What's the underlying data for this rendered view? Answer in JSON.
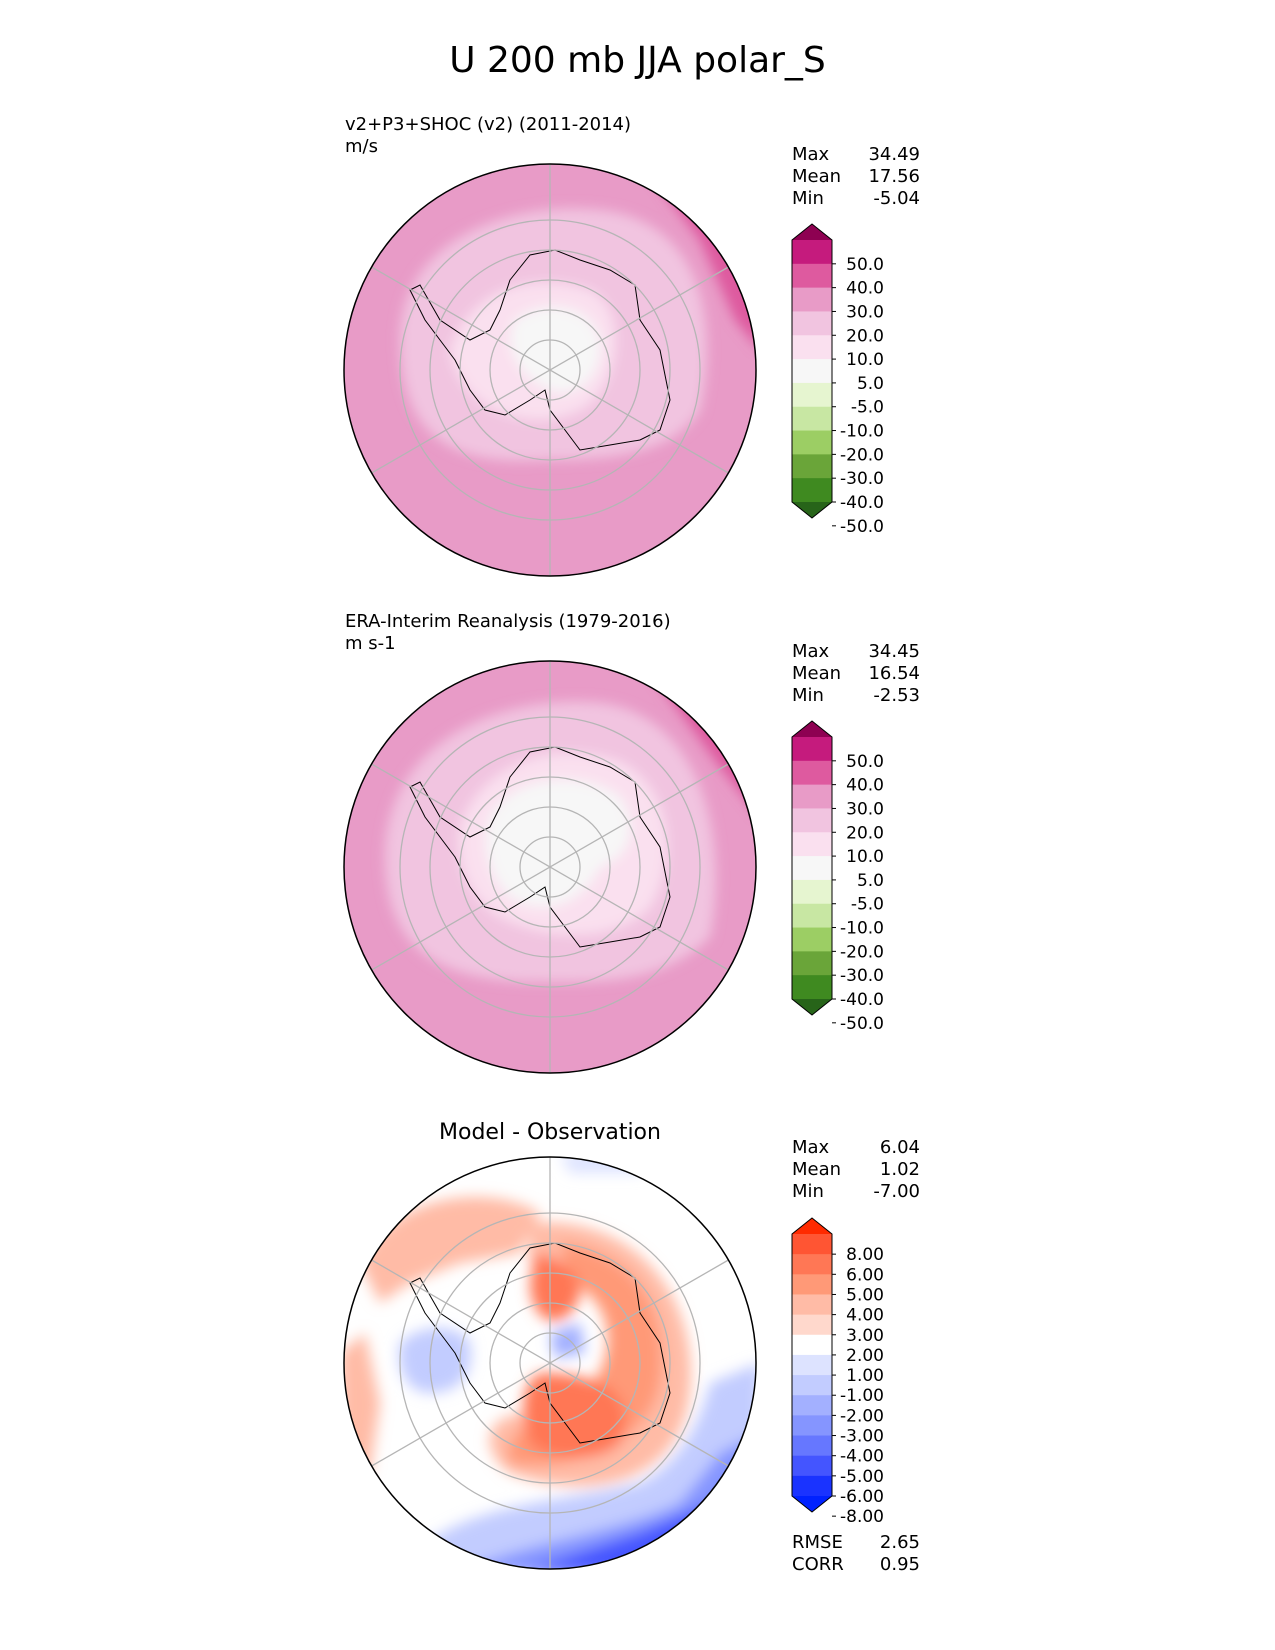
{
  "title": "U 200 mb JJA polar_S",
  "panels": [
    {
      "id": "test",
      "subtitle": "v2+P3+SHOC (v2) (2011-2014)",
      "units": "m/s",
      "stats": [
        {
          "label": "Max",
          "value": "34.49"
        },
        {
          "label": "Mean",
          "value": "17.56"
        },
        {
          "label": "Min",
          "value": "-5.04"
        }
      ],
      "colorbar": {
        "ticks": [
          "50.0",
          "40.0",
          "30.0",
          "20.0",
          "10.0",
          "5.0",
          "-5.0",
          "-10.0",
          "-20.0",
          "-30.0",
          "-40.0",
          "-50.0"
        ],
        "colors": [
          "#8e0152",
          "#c51b7d",
          "#de5a9f",
          "#e89bc7",
          "#f1c4e0",
          "#fae0ef",
          "#f7f7f7",
          "#e6f5d0",
          "#c8e7a3",
          "#9cce64",
          "#6aa539",
          "#3f8a20",
          "#276419"
        ]
      }
    },
    {
      "id": "reference",
      "subtitle": "ERA-Interim Reanalysis (1979-2016)",
      "units": "m s-1",
      "stats": [
        {
          "label": "Max",
          "value": "34.45"
        },
        {
          "label": "Mean",
          "value": "16.54"
        },
        {
          "label": "Min",
          "value": "-2.53"
        }
      ],
      "colorbar": {
        "ticks": [
          "50.0",
          "40.0",
          "30.0",
          "20.0",
          "10.0",
          "5.0",
          "-5.0",
          "-10.0",
          "-20.0",
          "-30.0",
          "-40.0",
          "-50.0"
        ],
        "colors": [
          "#8e0152",
          "#c51b7d",
          "#de5a9f",
          "#e89bc7",
          "#f1c4e0",
          "#fae0ef",
          "#f7f7f7",
          "#e6f5d0",
          "#c8e7a3",
          "#9cce64",
          "#6aa539",
          "#3f8a20",
          "#276419"
        ]
      }
    },
    {
      "id": "difference",
      "title": "Model - Observation",
      "stats": [
        {
          "label": "Max",
          "value": "6.04"
        },
        {
          "label": "Mean",
          "value": "1.02"
        },
        {
          "label": "Min",
          "value": "-7.00"
        }
      ],
      "extra_stats": [
        {
          "label": "RMSE",
          "value": "2.65"
        },
        {
          "label": "CORR",
          "value": "0.95"
        }
      ],
      "colorbar": {
        "ticks": [
          "8.00",
          "6.00",
          "5.00",
          "4.00",
          "3.00",
          "2.00",
          "1.00",
          "-1.00",
          "-2.00",
          "-3.00",
          "-4.00",
          "-5.00",
          "-6.00",
          "-8.00"
        ],
        "colors": [
          "#ff2a00",
          "#ff5533",
          "#ff7755",
          "#ff9977",
          "#ffbba6",
          "#ffd8cc",
          "#ffffff",
          "#dde3ff",
          "#c2ccff",
          "#a3b0ff",
          "#8595ff",
          "#6677ff",
          "#4455ff",
          "#1a33ff",
          "#0022ff"
        ]
      }
    }
  ],
  "chart_data": {
    "type": "heatmap",
    "title": "U 200 mb JJA polar_S",
    "variable": "U 200 mb",
    "season": "JJA",
    "region": "polar_S",
    "projection": "South polar stereographic",
    "panels": [
      {
        "name": "v2+P3+SHOC (v2) (2011-2014)",
        "units": "m/s",
        "max": 34.49,
        "mean": 17.56,
        "min": -5.04,
        "levels": [
          -50,
          -40,
          -30,
          -20,
          -10,
          -5,
          5,
          10,
          20,
          30,
          40,
          50
        ]
      },
      {
        "name": "ERA-Interim Reanalysis (1979-2016)",
        "units": "m s-1",
        "max": 34.45,
        "mean": 16.54,
        "min": -2.53,
        "levels": [
          -50,
          -40,
          -30,
          -20,
          -10,
          -5,
          5,
          10,
          20,
          30,
          40,
          50
        ]
      },
      {
        "name": "Model - Observation",
        "max": 6.04,
        "mean": 1.02,
        "min": -7.0,
        "rmse": 2.65,
        "corr": 0.95,
        "levels": [
          -8,
          -6,
          -5,
          -4,
          -3,
          -2,
          -1,
          1,
          2,
          3,
          4,
          5,
          6,
          8
        ]
      }
    ]
  }
}
